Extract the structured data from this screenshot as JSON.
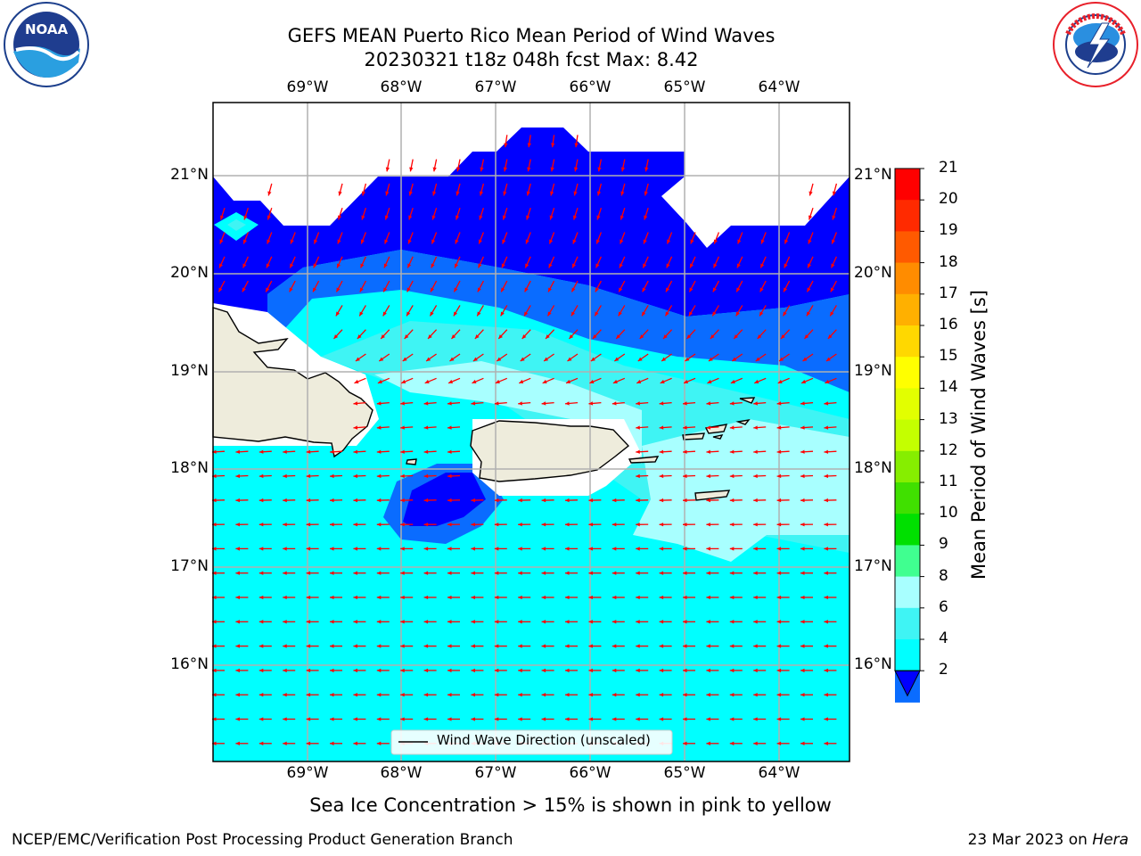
{
  "header": {
    "title_line1": "GEFS MEAN Puerto Rico Mean Period of Wind Waves",
    "title_line2": "20230321 t18z 048h fcst   Max: 8.42"
  },
  "logos": {
    "left": "NOAA",
    "left_ring_text": "NATIONAL OCEANIC AND ATMOSPHERIC ADMINISTRATION · U.S. DEPARTMENT OF COMMERCE",
    "right_ring_text": "NATIONAL WEATHER SERVICE"
  },
  "map": {
    "lon_labels": [
      "69°W",
      "68°W",
      "67°W",
      "66°W",
      "65°W",
      "64°W"
    ],
    "lat_labels": [
      "21°N",
      "20°N",
      "19°N",
      "18°N",
      "17°N",
      "16°N"
    ],
    "legend": "Wind Wave Direction (unscaled)",
    "colors": {
      "land": "#eeecdc",
      "band_2_4": "#0000ff",
      "band_4_6": "#0a6cff",
      "band_6_8": "#00ffff",
      "band_8_9": "#3ff4f4",
      "band_9_10": "#a8ffff",
      "arrow": "#ff0000"
    }
  },
  "colorbar": {
    "label": "Mean Period of Wind Waves [s]",
    "ticks": [
      "21",
      "20",
      "19",
      "18",
      "17",
      "16",
      "15",
      "14",
      "13",
      "12",
      "11",
      "10",
      "9",
      "8",
      "6",
      "4",
      "2"
    ],
    "colors": [
      "#ff0000",
      "#ff2a00",
      "#ff5a00",
      "#ff8c00",
      "#ffb000",
      "#ffd800",
      "#ffff00",
      "#e2ff00",
      "#c4ff00",
      "#86ee00",
      "#40e000",
      "#00e000",
      "#40ff90",
      "#a8ffff",
      "#3ff4f4",
      "#00ffff",
      "#0a6cff",
      "#0000ff"
    ]
  },
  "caption": "Sea Ice Concentration > 15% is shown in pink to yellow",
  "footer": {
    "left": "NCEP/EMC/Verification Post Processing Product Generation Branch",
    "right_prefix": "23 Mar 2023 on ",
    "right_host": "Hera"
  }
}
